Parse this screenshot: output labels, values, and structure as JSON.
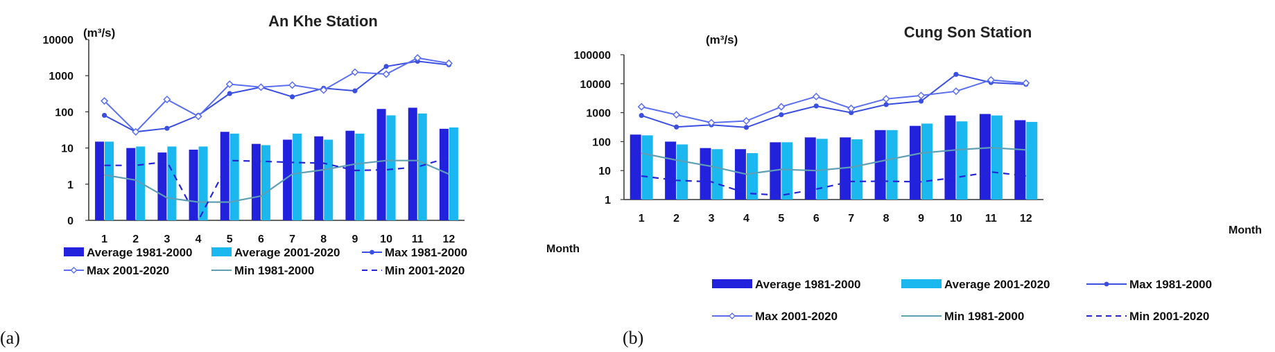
{
  "colors": {
    "avg_1981_2000": "#2222dd",
    "avg_2001_2020": "#1ab8ee",
    "max_1981_2000": "#3a4fe0",
    "max_2001_2020": "#5a6ef0",
    "min_1981_2000": "#5f9fb6",
    "min_2001_2020": "#2525d8"
  },
  "chart_data": [
    {
      "panel_label": "(a)",
      "type": "bar",
      "title": "An Khe Station",
      "ylabel": "(m³/s)",
      "xlabel": "Month",
      "yscale": "log",
      "ylim": [
        0.1,
        10000
      ],
      "yticks": [
        0.1,
        1,
        10,
        100,
        1000,
        10000
      ],
      "ytick_labels": [
        "0",
        "1",
        "10",
        "100",
        "1000",
        "10000"
      ],
      "categories": [
        "1",
        "2",
        "3",
        "4",
        "5",
        "6",
        "7",
        "8",
        "9",
        "10",
        "11",
        "12"
      ],
      "legend_position": "bottom",
      "series": [
        {
          "name": "Average 1981-2000",
          "kind": "bar",
          "values": [
            15,
            10,
            7.5,
            9,
            28,
            13,
            17,
            21,
            30,
            120,
            130,
            34
          ]
        },
        {
          "name": "Average 2001-2020",
          "kind": "bar",
          "values": [
            15,
            11,
            11,
            11,
            25,
            12,
            25,
            17,
            25,
            80,
            90,
            37
          ]
        },
        {
          "name": "Max 1981-2000",
          "kind": "line-marker",
          "values": [
            80,
            28,
            35,
            80,
            320,
            480,
            260,
            450,
            380,
            1800,
            2500,
            2000
          ]
        },
        {
          "name": "Max 2001-2020",
          "kind": "line-diamond",
          "values": [
            200,
            28,
            220,
            75,
            580,
            480,
            550,
            400,
            1250,
            1100,
            3100,
            2200
          ]
        },
        {
          "name": "Min 1981-2000",
          "kind": "line",
          "values": [
            1.8,
            1.3,
            0.42,
            0.32,
            0.32,
            0.47,
            1.9,
            2.5,
            3.6,
            4.5,
            4.5,
            1.9
          ]
        },
        {
          "name": "Min 2001-2020",
          "kind": "dashed",
          "values": [
            3.3,
            3.3,
            4.2,
            0.1,
            4.5,
            4.3,
            4.0,
            3.8,
            2.4,
            2.5,
            3.0,
            5.5
          ]
        }
      ]
    },
    {
      "panel_label": "(b)",
      "type": "bar",
      "title": "Cung Son Station",
      "ylabel": "(m³/s)",
      "xlabel": "Month",
      "yscale": "log",
      "ylim": [
        1,
        100000
      ],
      "yticks": [
        1,
        10,
        100,
        1000,
        10000,
        100000
      ],
      "ytick_labels": [
        "1",
        "10",
        "100",
        "1000",
        "10000",
        "100000"
      ],
      "categories": [
        "1",
        "2",
        "3",
        "4",
        "5",
        "6",
        "7",
        "8",
        "9",
        "10",
        "11",
        "12"
      ],
      "legend_position": "bottom",
      "series": [
        {
          "name": "Average 1981-2000",
          "kind": "bar",
          "values": [
            175,
            100,
            60,
            55,
            95,
            140,
            140,
            250,
            350,
            800,
            900,
            550
          ]
        },
        {
          "name": "Average 2001-2020",
          "kind": "bar",
          "values": [
            165,
            80,
            55,
            40,
            95,
            125,
            120,
            250,
            420,
            500,
            800,
            480
          ]
        },
        {
          "name": "Max 1981-2000",
          "kind": "line-marker",
          "values": [
            800,
            320,
            380,
            310,
            850,
            1700,
            1000,
            1900,
            2500,
            21000,
            11000,
            9500
          ]
        },
        {
          "name": "Max 2001-2020",
          "kind": "line-diamond",
          "values": [
            1600,
            850,
            450,
            520,
            1600,
            3600,
            1400,
            3000,
            3900,
            5500,
            13500,
            10500
          ]
        },
        {
          "name": "Min 1981-2000",
          "kind": "line",
          "values": [
            40,
            23,
            14,
            7.5,
            11,
            10,
            13,
            23,
            40,
            52,
            62,
            52
          ]
        },
        {
          "name": "Min 2001-2020",
          "kind": "dashed",
          "values": [
            6.5,
            4.6,
            4.1,
            1.65,
            1.4,
            2.3,
            4.2,
            4.3,
            4.1,
            5.8,
            9,
            6.5
          ]
        }
      ]
    }
  ]
}
